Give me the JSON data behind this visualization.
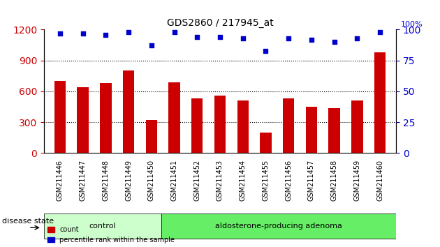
{
  "title": "GDS2860 / 217945_at",
  "samples": [
    "GSM211446",
    "GSM211447",
    "GSM211448",
    "GSM211449",
    "GSM211450",
    "GSM211451",
    "GSM211452",
    "GSM211453",
    "GSM211454",
    "GSM211455",
    "GSM211456",
    "GSM211457",
    "GSM211458",
    "GSM211459",
    "GSM211460"
  ],
  "counts": [
    700,
    640,
    680,
    800,
    320,
    690,
    530,
    560,
    510,
    200,
    530,
    450,
    440,
    510,
    980
  ],
  "percentiles": [
    97,
    97,
    96,
    98,
    87,
    98,
    94,
    94,
    93,
    83,
    93,
    92,
    90,
    93,
    98
  ],
  "control_count": 5,
  "group_labels": [
    "control",
    "aldosterone-producing adenoma"
  ],
  "group_colors": [
    "#ccffcc",
    "#66ee66"
  ],
  "bar_color": "#cc0000",
  "dot_color": "#0000cc",
  "left_yaxis_label": "",
  "right_yaxis_label": "",
  "ylim_left": [
    0,
    1200
  ],
  "ylim_right": [
    0,
    100
  ],
  "yticks_left": [
    0,
    300,
    600,
    900,
    1200
  ],
  "yticks_right": [
    0,
    25,
    50,
    75,
    100
  ],
  "legend_count_label": "count",
  "legend_pct_label": "percentile rank within the sample",
  "disease_state_label": "disease state",
  "background_color": "#ffffff",
  "plot_bg_color": "#ffffff",
  "tick_label_color_left": "#cc0000",
  "tick_label_color_right": "#0000cc",
  "grid_color": "#000000",
  "bar_width": 0.5
}
